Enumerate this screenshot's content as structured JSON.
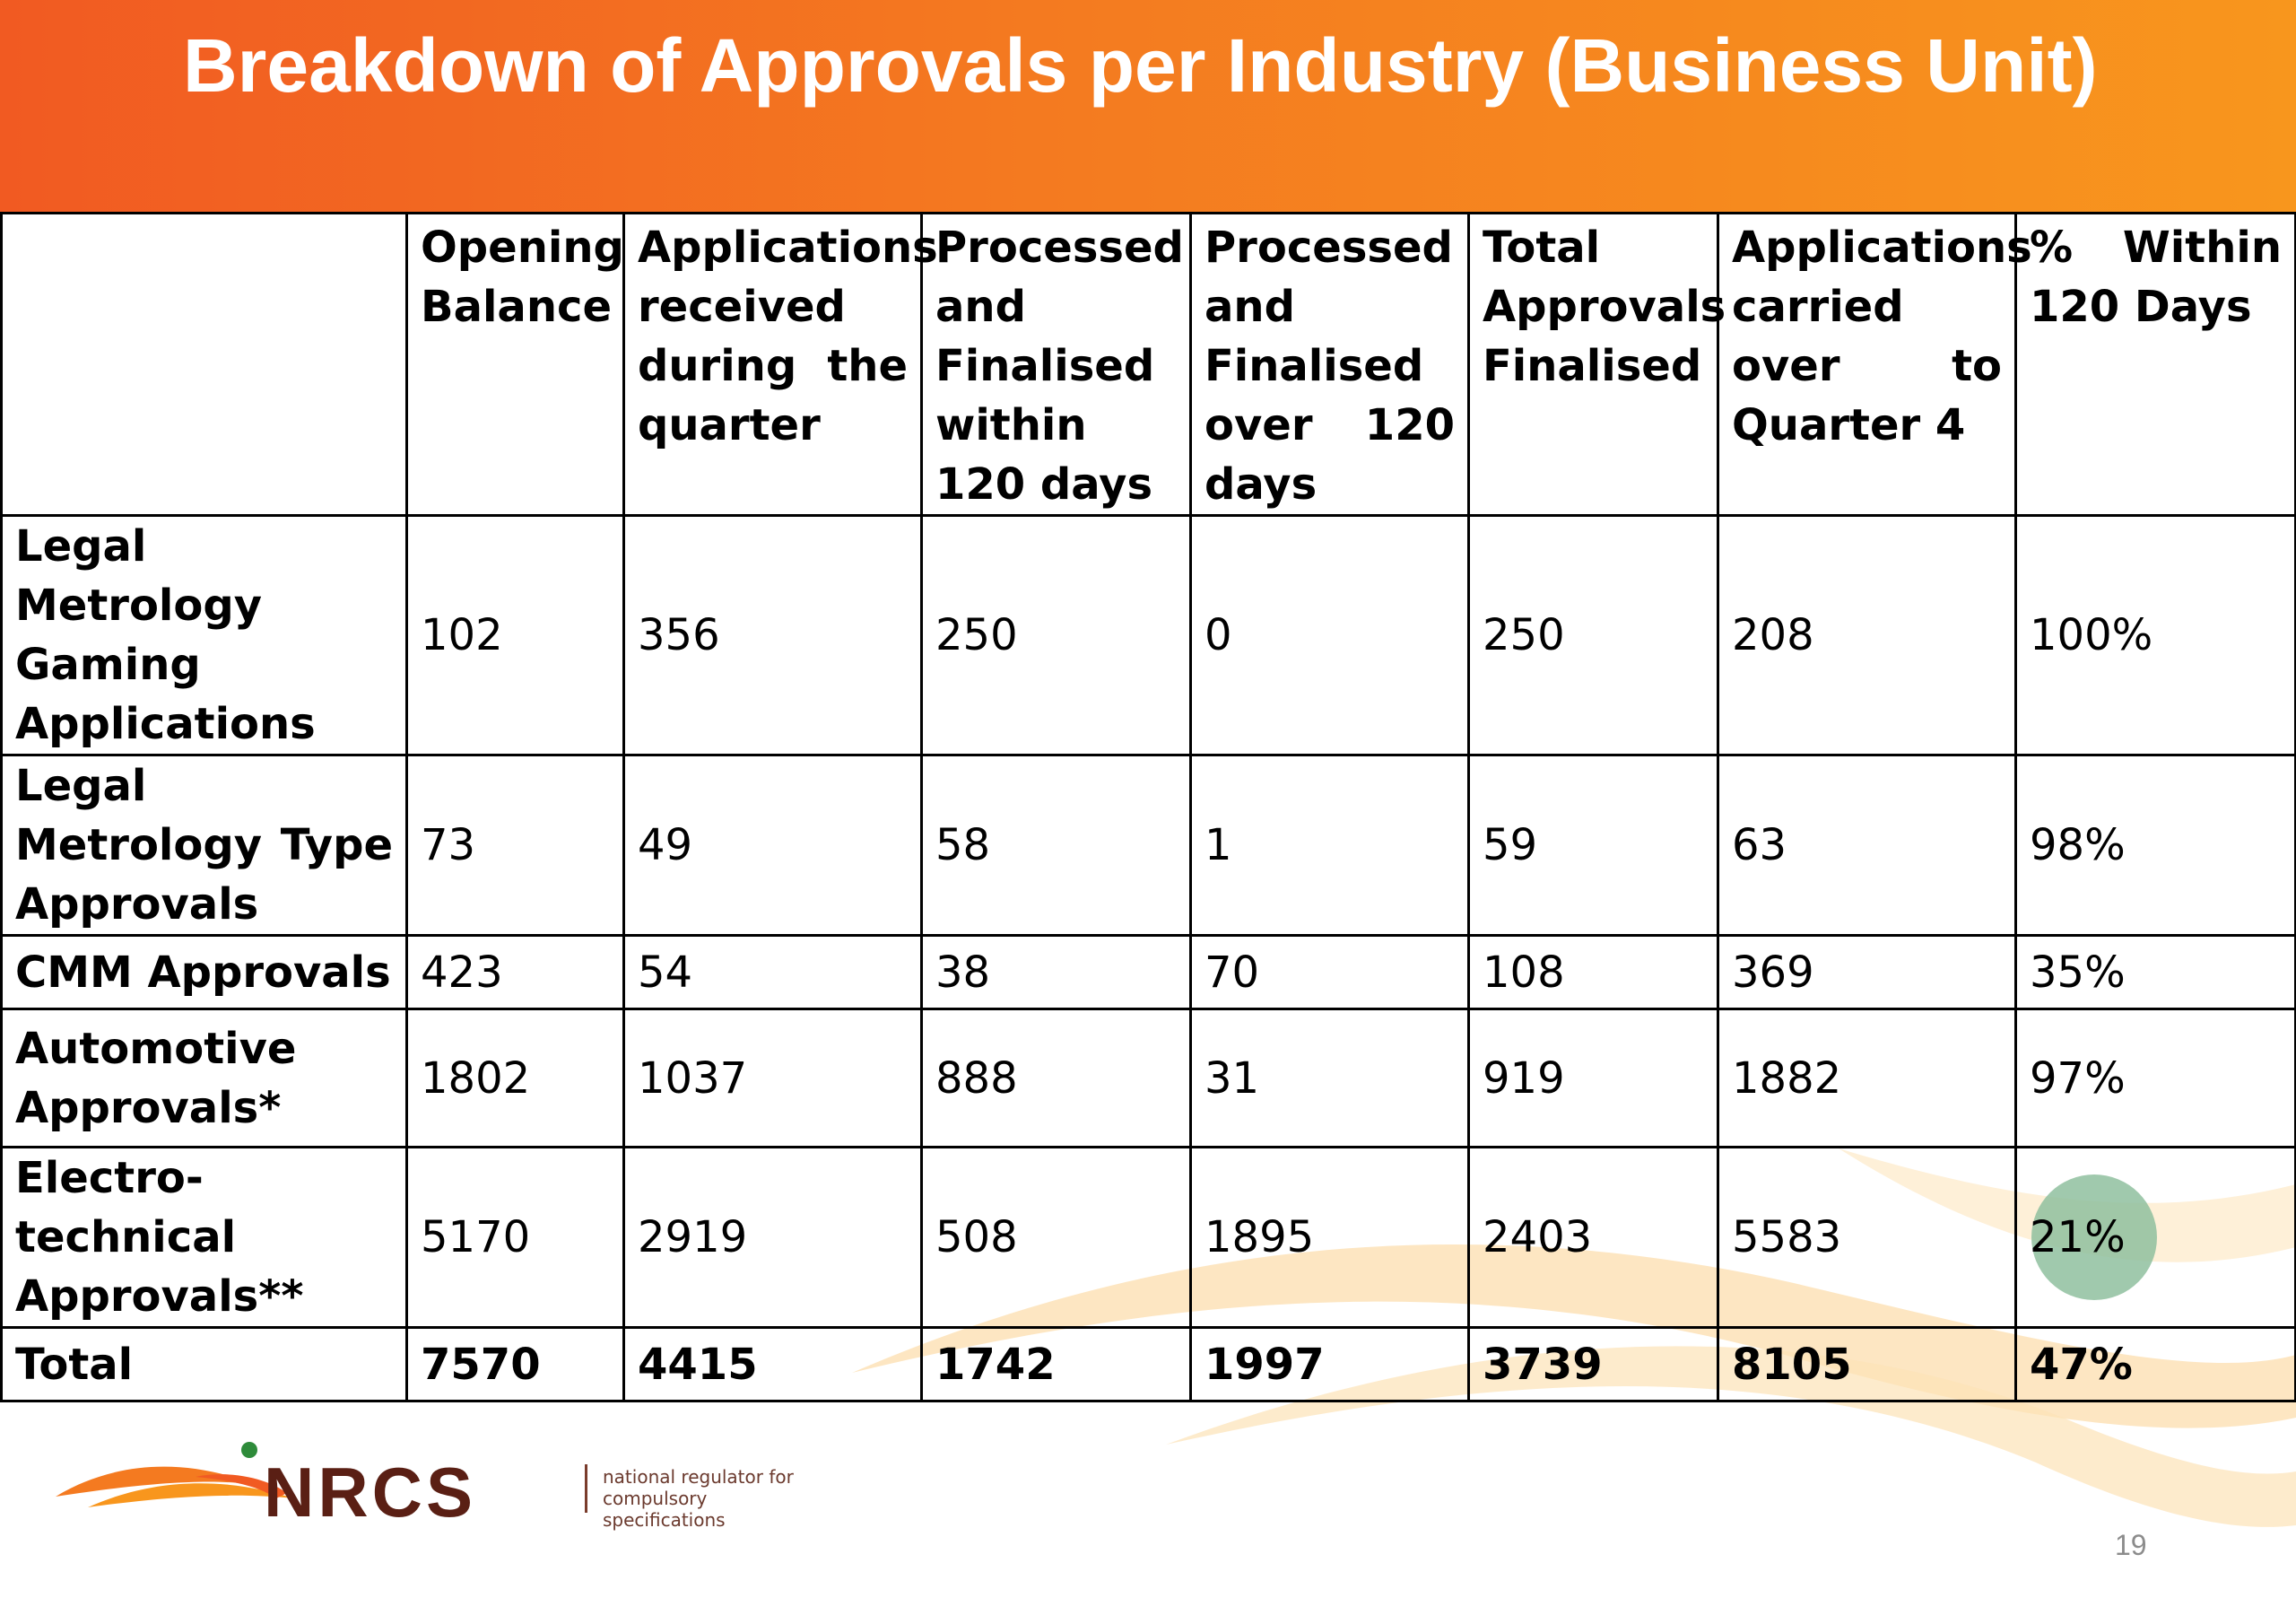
{
  "slide": {
    "title": "Breakdown of Approvals per Industry (Business Unit)",
    "page_number": "19",
    "colors": {
      "title_bar_start": "#f15a22",
      "title_bar_end": "#f8961d",
      "highlight_circle": "#8fbf9f"
    }
  },
  "table": {
    "headers": [
      "",
      "Opening Balance",
      "Applications received during the quarter",
      "Processed and Finalised within 120 days",
      "Processed and Finalised over 120 days",
      "Total Approvals Finalised",
      "Applications carried over to Quarter 4",
      "% Within 120 Days"
    ],
    "rows": [
      [
        "Legal Metrology Gaming Applications",
        "102",
        "356",
        "250",
        "0",
        "250",
        "208",
        "100%"
      ],
      [
        "Legal Metrology Type Approvals",
        "73",
        "49",
        "58",
        "1",
        "59",
        "63",
        "98%"
      ],
      [
        "CMM Approvals",
        "423",
        "54",
        "38",
        "70",
        "108",
        "369",
        "35%"
      ],
      [
        "Automotive Approvals*",
        "1802",
        "1037",
        "888",
        "31",
        "919",
        "1882",
        "97%"
      ],
      [
        "Electro-technical Approvals**",
        "5170",
        "2919",
        "508",
        "1895",
        "2403",
        "5583",
        "21%"
      ],
      [
        "Total",
        "7570",
        "4415",
        "1742",
        "1997",
        "3739",
        "8105",
        "47%"
      ]
    ]
  },
  "logo": {
    "name": "NRCS",
    "tagline_line1": "national regulator for",
    "tagline_line2": "compulsory specifications"
  }
}
